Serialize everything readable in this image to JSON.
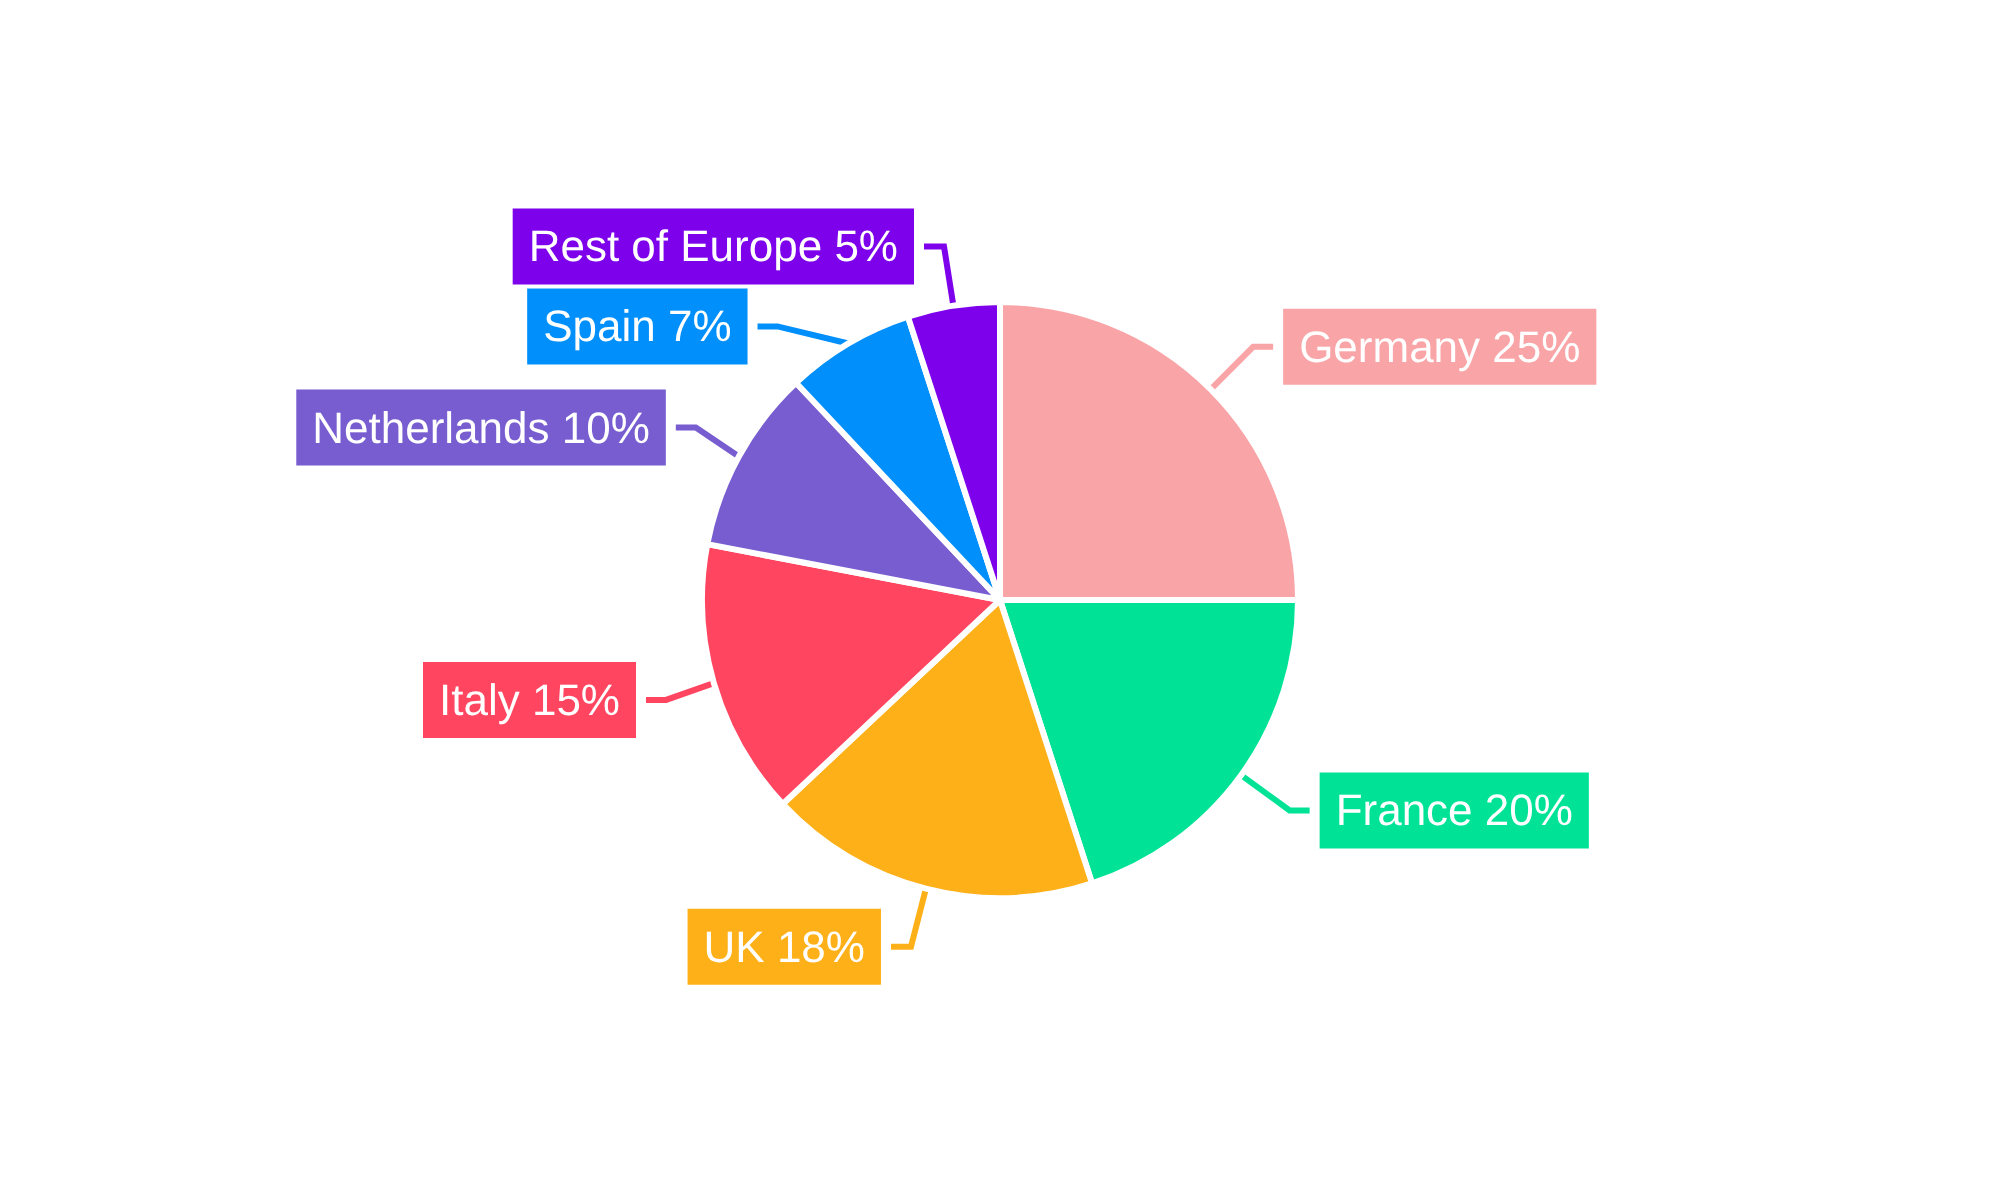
{
  "chart_data": {
    "type": "pie",
    "categories": [
      "Germany",
      "France",
      "UK",
      "Italy",
      "Netherlands",
      "Spain",
      "Rest of Europe"
    ],
    "values": [
      25,
      20,
      18,
      15,
      10,
      7,
      5
    ],
    "value_labels": [
      "25%",
      "20%",
      "18%",
      "15%",
      "10%",
      "7%",
      "5%"
    ],
    "colors": [
      "#f9a5a7",
      "#00e396",
      "#feb019",
      "#ff4560",
      "#775dd0",
      "#008ffb",
      "#7d02eb"
    ],
    "legend": false
  }
}
